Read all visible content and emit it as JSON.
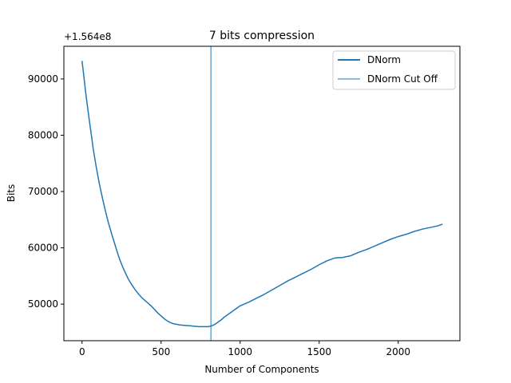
{
  "chart_data": {
    "type": "line",
    "title": "7 bits compression",
    "xlabel": "Number of Components",
    "ylabel": "Bits",
    "offset_text": "+1.564e8",
    "xlim": [
      -115,
      2390
    ],
    "ylim": [
      43500,
      95800
    ],
    "xticks": [
      0,
      500,
      1000,
      1500,
      2000
    ],
    "yticks": [
      50000,
      60000,
      70000,
      80000,
      90000
    ],
    "grid": false,
    "legend_position": "top-right",
    "series": [
      {
        "name": "DNorm",
        "color": "#1f77b4",
        "x": [
          0,
          10,
          20,
          30,
          40,
          50,
          60,
          70,
          80,
          90,
          100,
          110,
          120,
          130,
          140,
          150,
          160,
          170,
          180,
          190,
          200,
          210,
          220,
          230,
          240,
          250,
          260,
          270,
          280,
          290,
          300,
          320,
          340,
          360,
          380,
          400,
          420,
          440,
          460,
          480,
          500,
          520,
          540,
          560,
          580,
          600,
          620,
          640,
          660,
          680,
          700,
          720,
          740,
          760,
          780,
          800,
          820,
          840,
          860,
          880,
          900,
          920,
          940,
          960,
          980,
          1000,
          1050,
          1100,
          1150,
          1200,
          1250,
          1300,
          1350,
          1400,
          1450,
          1500,
          1550,
          1600,
          1650,
          1700,
          1750,
          1800,
          1850,
          1900,
          1950,
          2000,
          2050,
          2100,
          2150,
          2200,
          2250,
          2280
        ],
        "y": [
          93200,
          90800,
          88300,
          86000,
          83900,
          81800,
          79800,
          77700,
          76000,
          74300,
          72800,
          71300,
          70000,
          68700,
          67500,
          66300,
          65200,
          64100,
          63200,
          62200,
          61300,
          60400,
          59500,
          58600,
          57800,
          57100,
          56400,
          55800,
          55200,
          54600,
          54100,
          53200,
          52400,
          51700,
          51100,
          50600,
          50100,
          49600,
          49000,
          48400,
          47900,
          47400,
          47000,
          46700,
          46500,
          46400,
          46300,
          46250,
          46200,
          46150,
          46100,
          46050,
          46000,
          46000,
          46000,
          46000,
          46150,
          46400,
          46800,
          47200,
          47700,
          48100,
          48500,
          48900,
          49300,
          49700,
          50300,
          51000,
          51700,
          52500,
          53300,
          54100,
          54800,
          55500,
          56200,
          57000,
          57700,
          58200,
          58300,
          58600,
          59200,
          59700,
          60300,
          60900,
          61500,
          62000,
          62400,
          62900,
          63300,
          63600,
          63900,
          64200
        ]
      },
      {
        "name": "DNorm Cut Off",
        "color": "#1f77b4",
        "vline_x": 815
      }
    ]
  }
}
